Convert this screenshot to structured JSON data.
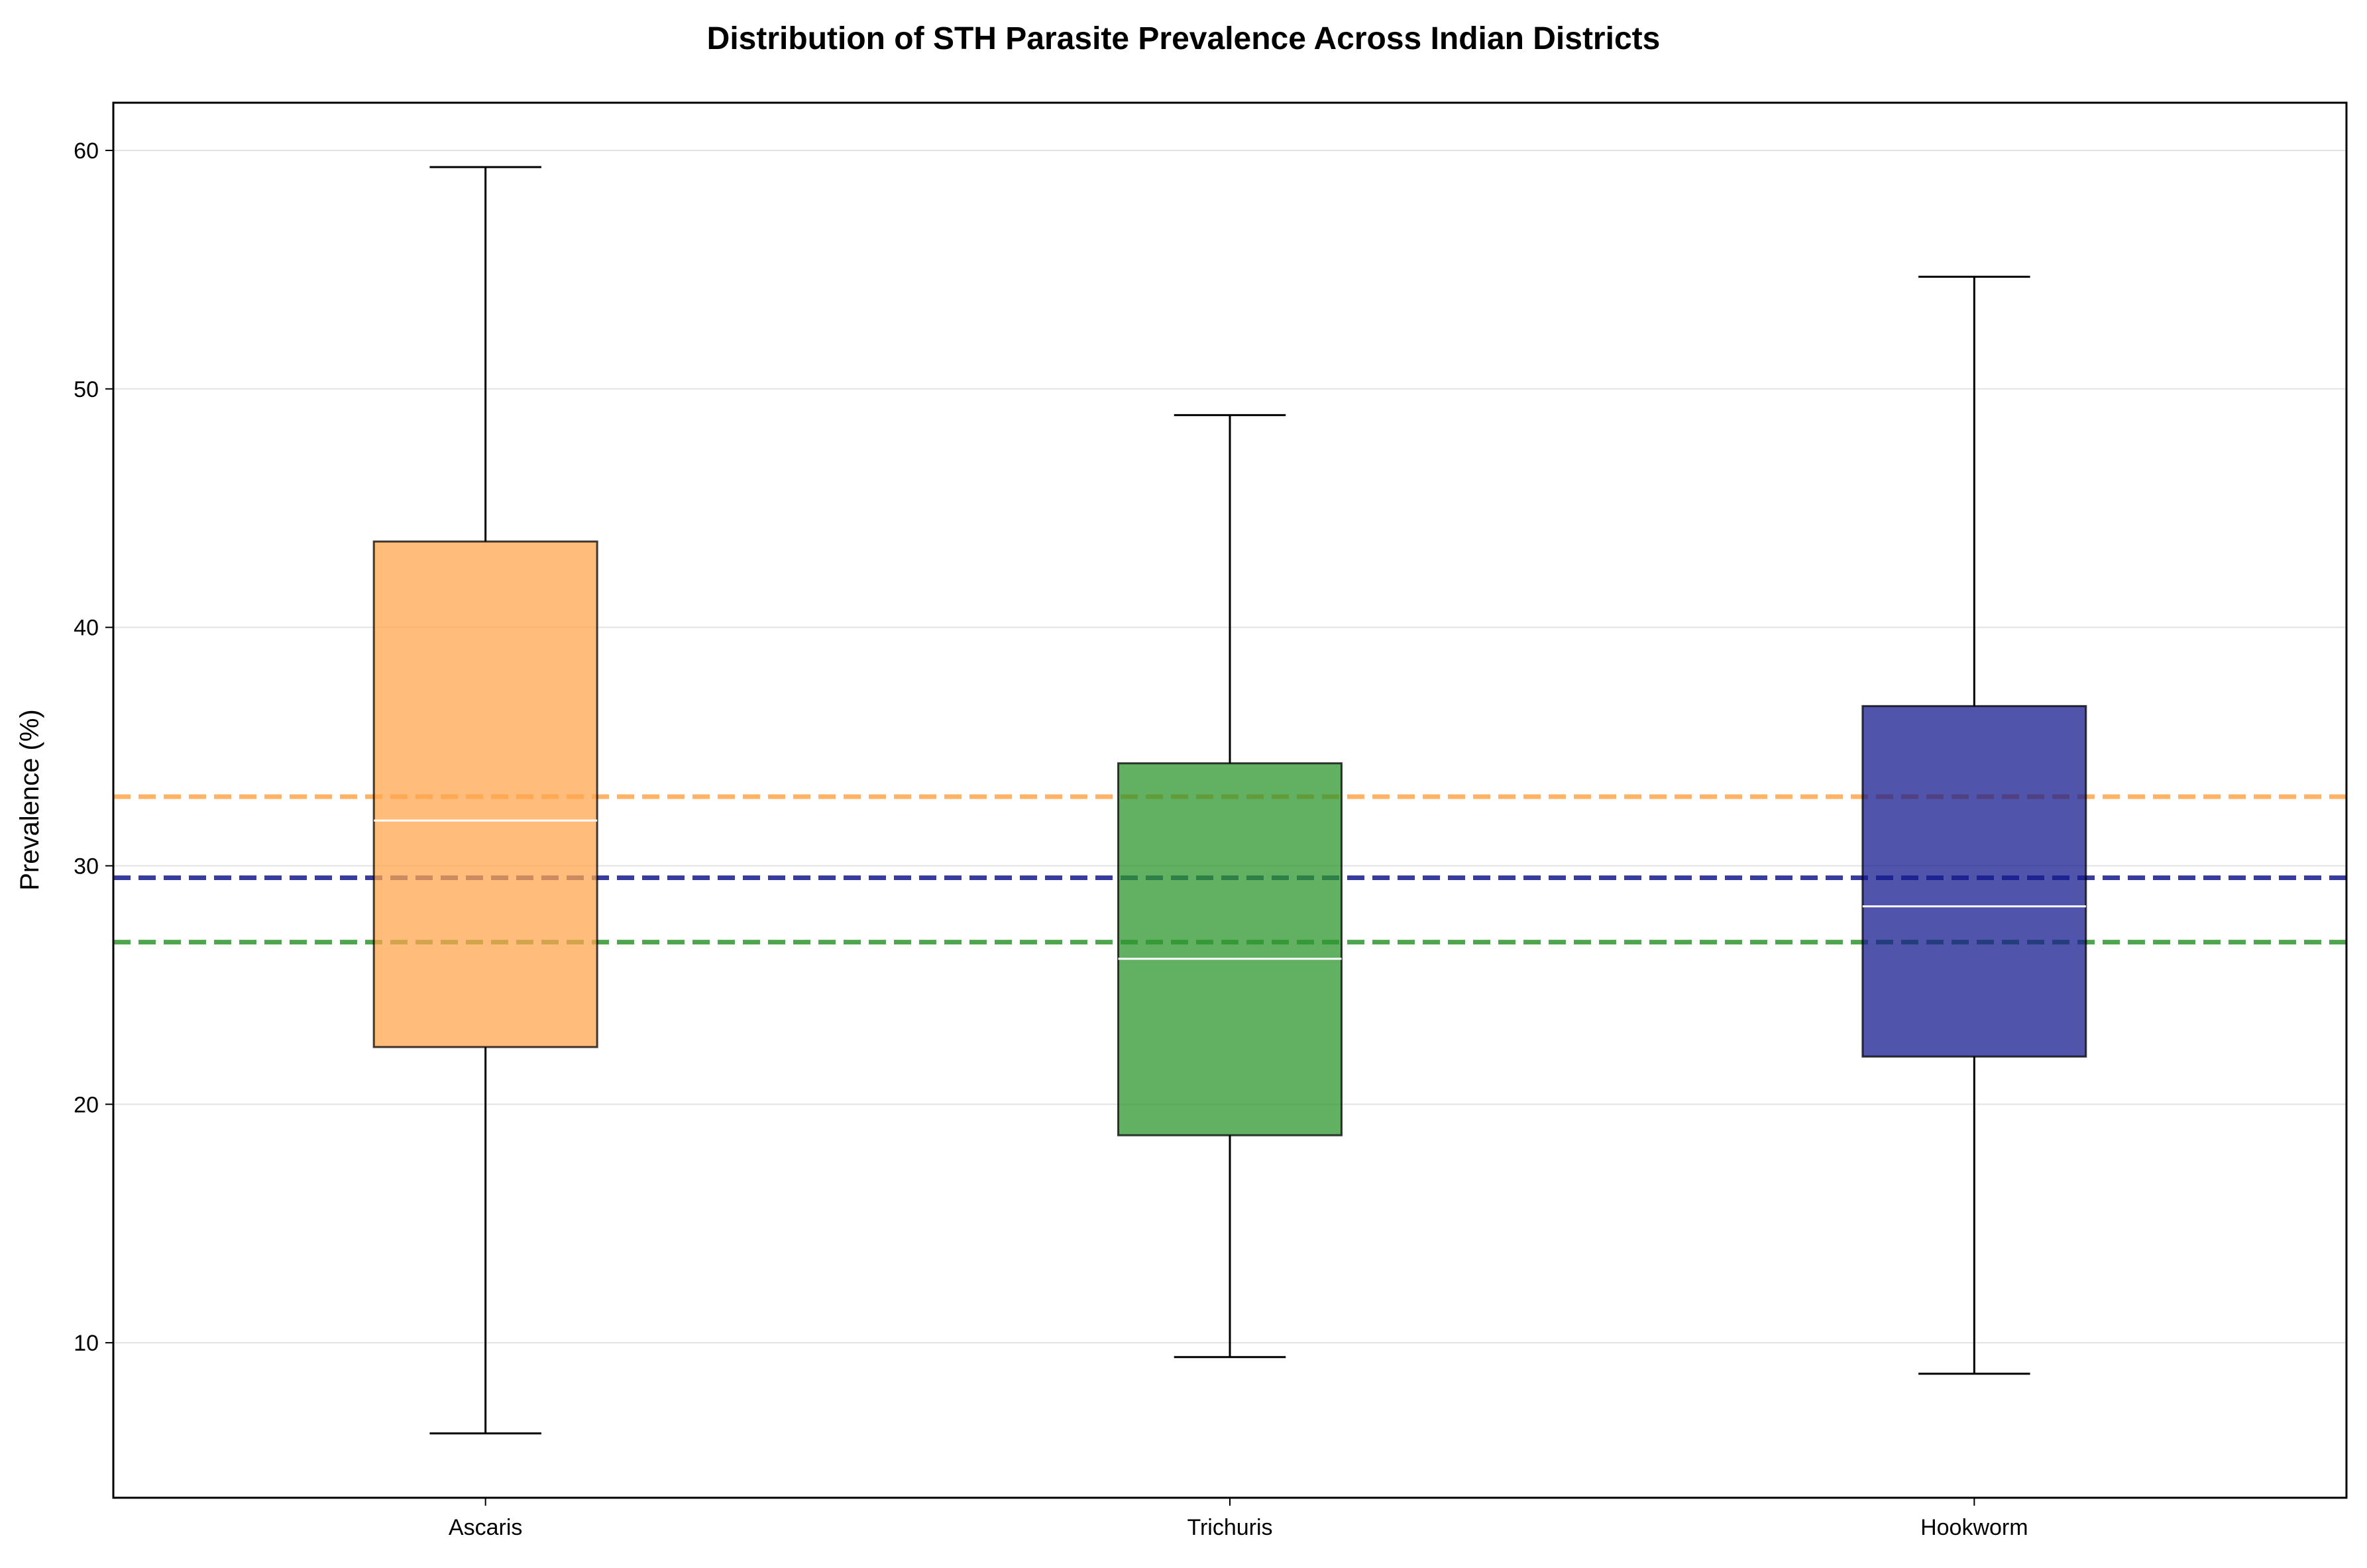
{
  "chart_data": {
    "type": "box",
    "title": "Distribution of STH Parasite Prevalence Across Indian Districts",
    "xlabel": "",
    "ylabel": "Prevalence (%)",
    "ylim": [
      3.5,
      62
    ],
    "yticks": [
      10,
      20,
      30,
      40,
      50,
      60
    ],
    "grid": "horizontal",
    "categories": [
      "Ascaris",
      "Trichuris",
      "Hookworm"
    ],
    "series": [
      {
        "category": "Ascaris",
        "whisker_low": 6.2,
        "q1": 22.4,
        "median": 31.9,
        "q3": 43.6,
        "whisker_high": 59.3,
        "mean": 32.9,
        "color": "#ffa64d"
      },
      {
        "category": "Trichuris",
        "whisker_low": 9.4,
        "q1": 18.7,
        "median": 26.1,
        "q3": 34.3,
        "whisker_high": 48.9,
        "mean": 26.8,
        "color": "#2e962e"
      },
      {
        "category": "Hookworm",
        "whisker_low": 8.7,
        "q1": 22.0,
        "median": 28.3,
        "q3": 36.7,
        "whisker_high": 54.7,
        "mean": 29.5,
        "color": "#151b8d"
      }
    ],
    "mean_line_style": "dashed",
    "median_color": "#ffffff"
  }
}
